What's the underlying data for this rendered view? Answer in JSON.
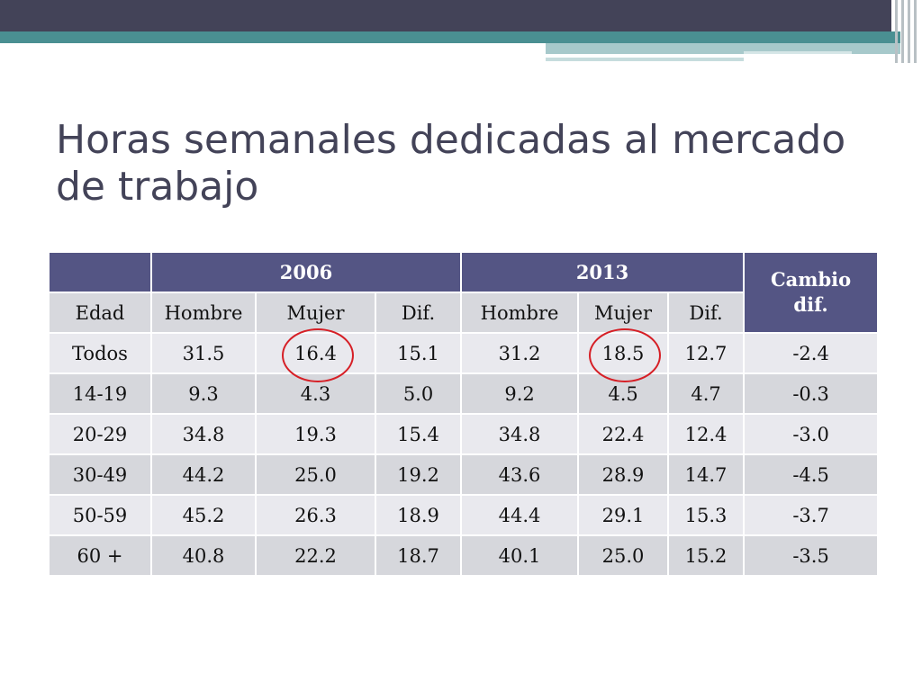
{
  "title": "Horas semanales dedicadas al mercado de trabajo",
  "table": {
    "years": [
      "2006",
      "2013"
    ],
    "change_header": "Cambio dif.",
    "columns": [
      "Edad",
      "Hombre",
      "Mujer",
      "Dif.",
      "Hombre",
      "Mujer",
      "Dif."
    ],
    "rows": [
      {
        "age": "Todos",
        "h2006": "31.5",
        "m2006": "16.4",
        "d2006": "15.1",
        "h2013": "31.2",
        "m2013": "18.5",
        "d2013": "12.7",
        "change": "-2.4"
      },
      {
        "age": "14-19",
        "h2006": "9.3",
        "m2006": "4.3",
        "d2006": "5.0",
        "h2013": "9.2",
        "m2013": "4.5",
        "d2013": "4.7",
        "change": "-0.3"
      },
      {
        "age": "20-29",
        "h2006": "34.8",
        "m2006": "19.3",
        "d2006": "15.4",
        "h2013": "34.8",
        "m2013": "22.4",
        "d2013": "12.4",
        "change": "-3.0"
      },
      {
        "age": "30-49",
        "h2006": "44.2",
        "m2006": "25.0",
        "d2006": "19.2",
        "h2013": "43.6",
        "m2013": "28.9",
        "d2013": "14.7",
        "change": "-4.5"
      },
      {
        "age": "50-59",
        "h2006": "45.2",
        "m2006": "26.3",
        "d2006": "18.9",
        "h2013": "44.4",
        "m2013": "29.1",
        "d2013": "15.3",
        "change": "-3.7"
      },
      {
        "age": "60 +",
        "h2006": "40.8",
        "m2006": "22.2",
        "d2006": "18.7",
        "h2013": "40.1",
        "m2013": "25.0",
        "d2013": "15.2",
        "change": "-3.5"
      }
    ]
  },
  "colors": {
    "header": "#545584",
    "title": "#434358",
    "circle": "#d61f26"
  }
}
